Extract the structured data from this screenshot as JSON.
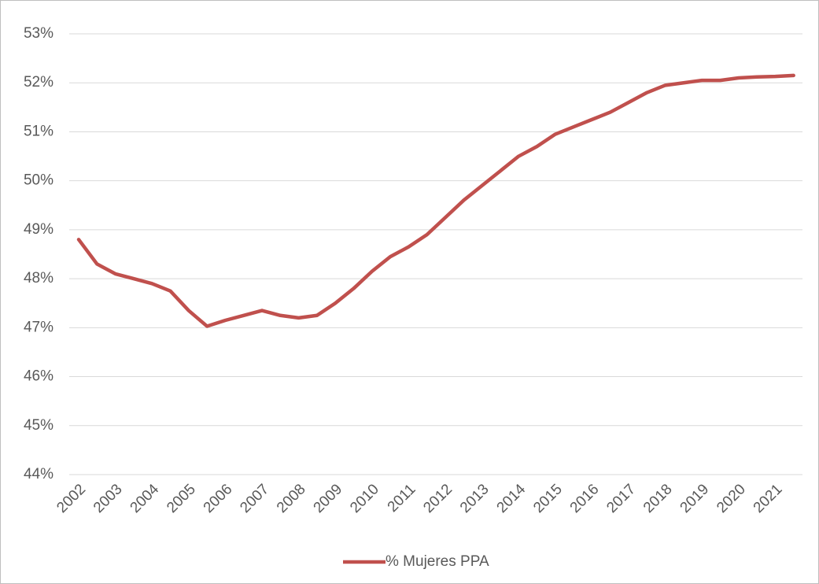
{
  "chart_data": {
    "type": "line",
    "categories": [
      "2002",
      null,
      "2003",
      null,
      "2004",
      null,
      "2005",
      null,
      "2006",
      null,
      "2007",
      null,
      "2008",
      null,
      "2009",
      null,
      "2010",
      null,
      "2011",
      null,
      "2012",
      null,
      "2013",
      null,
      "2014",
      null,
      "2015",
      null,
      "2016",
      null,
      "2017",
      null,
      "2018",
      null,
      "2019",
      null,
      "2020",
      null,
      "2021",
      null
    ],
    "series": [
      {
        "name": "% Mujeres PPA",
        "color": "#c0504d",
        "values": [
          48.8,
          48.3,
          48.1,
          48.0,
          47.9,
          47.75,
          47.35,
          47.03,
          47.15,
          47.25,
          47.35,
          47.25,
          47.2,
          47.25,
          47.5,
          47.8,
          48.15,
          48.45,
          48.65,
          48.9,
          49.25,
          49.6,
          49.9,
          50.2,
          50.5,
          50.7,
          50.95,
          51.1,
          51.25,
          51.4,
          51.6,
          51.8,
          51.95,
          52.0,
          52.05,
          52.05,
          52.1,
          52.12,
          52.13,
          52.15
        ]
      }
    ],
    "ylim": [
      44,
      53
    ],
    "yticks": [
      {
        "value": 44,
        "label": "44%"
      },
      {
        "value": 45,
        "label": "45%"
      },
      {
        "value": 46,
        "label": "46%"
      },
      {
        "value": 47,
        "label": "47%"
      },
      {
        "value": 48,
        "label": "48%"
      },
      {
        "value": 49,
        "label": "49%"
      },
      {
        "value": 50,
        "label": "50%"
      },
      {
        "value": 51,
        "label": "51%"
      },
      {
        "value": 52,
        "label": "52%"
      },
      {
        "value": 53,
        "label": "53%"
      }
    ],
    "grid": true,
    "legend": "bottom"
  }
}
